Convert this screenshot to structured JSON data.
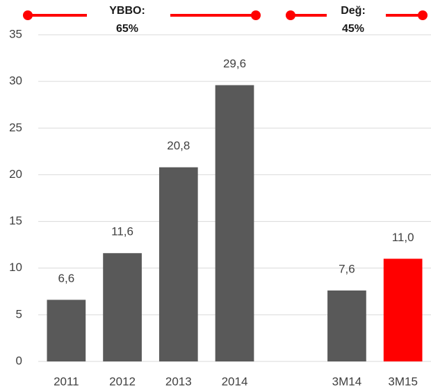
{
  "chart_data": {
    "type": "bar",
    "categories": [
      "2011",
      "2012",
      "2013",
      "2014",
      null,
      "3M14",
      "3M15"
    ],
    "values": [
      6.6,
      11.6,
      20.8,
      29.6,
      null,
      7.6,
      11.0
    ],
    "value_labels": [
      "6,6",
      "11,6",
      "20,8",
      "29,6",
      null,
      "7,6",
      "11,0"
    ],
    "colors": [
      "#595959",
      "#595959",
      "#595959",
      "#595959",
      null,
      "#595959",
      "#ff0000"
    ],
    "ylim": [
      0,
      35
    ],
    "yticks": [
      0,
      5,
      10,
      15,
      20,
      25,
      30,
      35
    ],
    "grid": true,
    "annotations": [
      [
        "YBBO:",
        "65%"
      ],
      [
        "Değ:",
        "45%"
      ]
    ]
  }
}
